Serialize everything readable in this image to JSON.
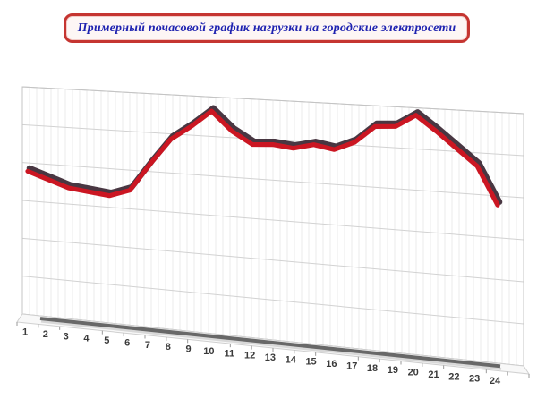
{
  "title": {
    "text": "Примерный почасовой график нагрузки на городские электросети",
    "text_color": "#1e22b0",
    "border_color": "#c53531",
    "background_color": "#fdf6f5"
  },
  "chart_data": {
    "type": "line",
    "style": "3d-perspective",
    "title": "Примерный почасовой график нагрузки на городские электросети",
    "xlabel": "",
    "ylabel": "",
    "categories": [
      1,
      2,
      3,
      4,
      5,
      6,
      7,
      8,
      9,
      10,
      11,
      12,
      13,
      14,
      15,
      16,
      17,
      18,
      19,
      20,
      21,
      22,
      23,
      24
    ],
    "values": [
      63,
      60,
      57,
      56,
      55,
      58,
      70,
      81,
      87,
      94,
      86,
      81,
      81.5,
      80.5,
      82.5,
      81,
      84.5,
      91.5,
      92,
      97,
      91,
      84.5,
      78,
      63
    ],
    "y_tick_labels": [],
    "ylim": [
      0,
      100
    ],
    "gridline_divisions": 6,
    "grid": true,
    "legend": false,
    "line_color": "#cb1622",
    "line_shadow_color": "#3f2c38",
    "axis_label_color": "#3a3a3a",
    "gridline_color": "#d2d2d2",
    "minor_gridline_color": "#ebebeb",
    "wall_edge_color": "#c4c4c4",
    "floor_strip_color": "#686868"
  }
}
